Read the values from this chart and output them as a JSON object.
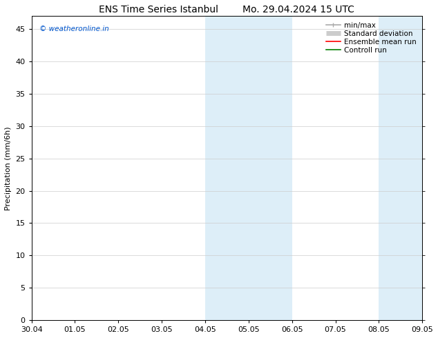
{
  "title": "ENS Time Series Istanbul        Mo. 29.04.2024 15 UTC",
  "ylabel": "Precipitation (mm/6h)",
  "xlabel_ticks": [
    "30.04",
    "01.05",
    "02.05",
    "03.05",
    "04.05",
    "05.05",
    "06.05",
    "07.05",
    "08.05",
    "09.05"
  ],
  "xlim": [
    0,
    9
  ],
  "ylim": [
    0,
    47
  ],
  "yticks": [
    0,
    5,
    10,
    15,
    20,
    25,
    30,
    35,
    40,
    45
  ],
  "shaded_regions": [
    {
      "xmin": 4.0,
      "xmax": 5.0,
      "color": "#ddeef8"
    },
    {
      "xmin": 5.0,
      "xmax": 6.0,
      "color": "#ddeef8"
    },
    {
      "xmin": 8.0,
      "xmax": 9.0,
      "color": "#ddeef8"
    }
  ],
  "legend_entries": [
    {
      "label": "min/max",
      "color": "#aaaaaa",
      "lw": 1.2,
      "style": "minmax"
    },
    {
      "label": "Standard deviation",
      "color": "#cccccc",
      "lw": 5,
      "style": "thick"
    },
    {
      "label": "Ensemble mean run",
      "color": "#ff0000",
      "lw": 1.2,
      "style": "line"
    },
    {
      "label": "Controll run",
      "color": "#008000",
      "lw": 1.2,
      "style": "line"
    }
  ],
  "watermark_text": "© weatheronline.in",
  "watermark_color": "#0055cc",
  "background_color": "#ffffff",
  "plot_bg_color": "#ffffff",
  "title_fontsize": 10,
  "label_fontsize": 8,
  "tick_fontsize": 8,
  "legend_fontsize": 7.5
}
